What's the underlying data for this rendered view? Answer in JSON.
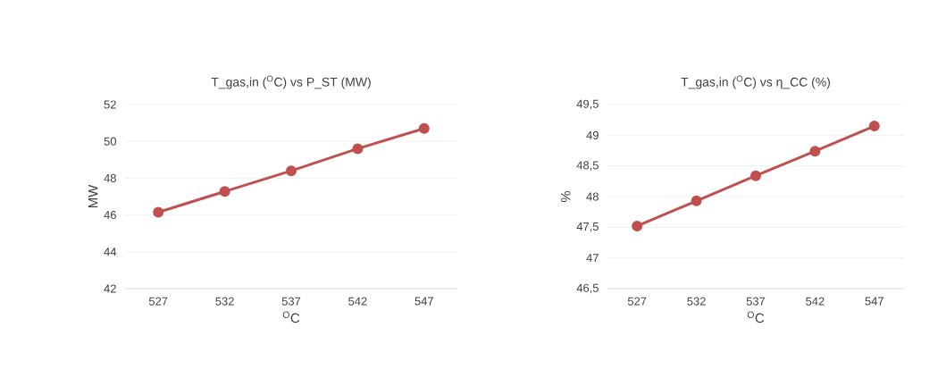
{
  "chart_data": [
    {
      "type": "line",
      "title": "T_gas,in ($^{O}$C) vs P_ST (MW)",
      "xlabel": "$^{O}$C",
      "ylabel": "MW",
      "categories": [
        "527",
        "532",
        "537",
        "542",
        "547"
      ],
      "series": [
        {
          "color": "#c0504d",
          "values": [
            46.15,
            47.28,
            48.4,
            49.6,
            50.7
          ]
        }
      ],
      "ylim": [
        42,
        52
      ],
      "yticks": [
        42,
        44,
        46,
        48,
        50,
        52
      ],
      "grid": "y",
      "marker": "circle",
      "line_style": "solid"
    },
    {
      "type": "line",
      "title": "T_gas,in ($^{O}$C) vs η_CC (%)",
      "xlabel": "$^{O}$C",
      "ylabel": "%",
      "categories": [
        "527",
        "532",
        "537",
        "542",
        "547"
      ],
      "series": [
        {
          "color": "#c0504d",
          "values": [
            47.52,
            47.93,
            48.34,
            48.74,
            49.15
          ]
        }
      ],
      "ylim": [
        46.5,
        49.5
      ],
      "yticks": [
        {
          "value": 46.5,
          "label": "46,5"
        },
        47,
        {
          "value": 47.5,
          "label": "47,5"
        },
        48,
        {
          "value": 48.5,
          "label": "48,5"
        },
        49,
        {
          "value": 49.5,
          "label": "49,5"
        }
      ],
      "grid": "y",
      "marker": "circle",
      "line_style": "solid"
    }
  ]
}
